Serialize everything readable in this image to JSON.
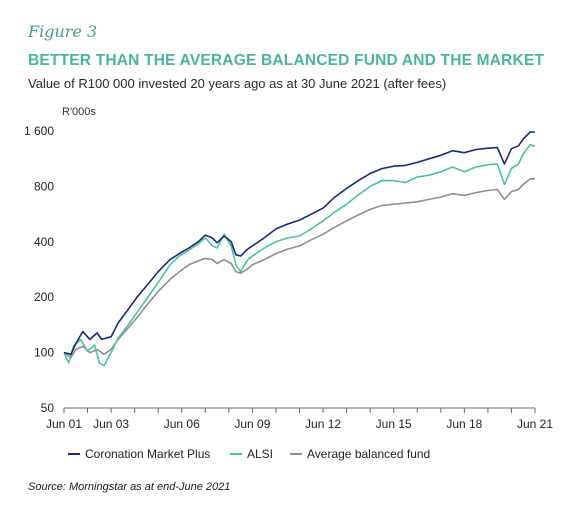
{
  "figure_label": "Figure 3",
  "source": "Source: Morningstar as at end-June 2021",
  "colors": {
    "coronation": "#1b2a78",
    "alsi": "#4fbfa5",
    "balanced": "#8e8e8e",
    "title": "#4bb39e",
    "axis": "#6b6b6b"
  },
  "chart_data": {
    "type": "line",
    "title": "BETTER THAN THE AVERAGE BALANCED FUND AND THE MARKET",
    "subtitle": "Value of R100 000 invested 20 years ago as at 30 June 2021 (after fees)",
    "ylabel": "R'000s",
    "xlabel": "",
    "yscale": "log2",
    "ylim": [
      50,
      1600
    ],
    "yticks": [
      50,
      100,
      200,
      400,
      800,
      1600
    ],
    "ytick_labels": [
      "50",
      "100",
      "200",
      "400",
      "800",
      "1 600"
    ],
    "xlim": [
      2001.5,
      2021.5
    ],
    "xticks": [
      2001.5,
      2002.5,
      2003.5,
      2004.5,
      2005.5,
      2006.5,
      2007.5,
      2008.5,
      2009.5,
      2010.5,
      2011.5,
      2012.5,
      2013.5,
      2014.5,
      2015.5,
      2016.5,
      2017.5,
      2018.5,
      2019.5,
      2020.5,
      2021.5
    ],
    "xtick_labels": [
      {
        "x": 2001.5,
        "label": "Jun 01"
      },
      {
        "x": 2003.5,
        "label": "Jun 03"
      },
      {
        "x": 2006.5,
        "label": "Jun 06"
      },
      {
        "x": 2009.5,
        "label": "Jun 09"
      },
      {
        "x": 2012.5,
        "label": "Jun 12"
      },
      {
        "x": 2015.5,
        "label": "Jun 15"
      },
      {
        "x": 2018.5,
        "label": "Jun 18"
      },
      {
        "x": 2021.5,
        "label": "Jun 21"
      }
    ],
    "legend_position": "bottom",
    "grid": false,
    "series": [
      {
        "name": "Coronation Market Plus",
        "key": "coronation",
        "points": [
          [
            2001.5,
            100
          ],
          [
            2001.8,
            98
          ],
          [
            2002.0,
            112
          ],
          [
            2002.3,
            130
          ],
          [
            2002.6,
            118
          ],
          [
            2002.9,
            128
          ],
          [
            2003.1,
            118
          ],
          [
            2003.5,
            122
          ],
          [
            2003.8,
            145
          ],
          [
            2004.2,
            170
          ],
          [
            2004.6,
            200
          ],
          [
            2005.0,
            230
          ],
          [
            2005.5,
            275
          ],
          [
            2006.0,
            320
          ],
          [
            2006.4,
            345
          ],
          [
            2006.8,
            370
          ],
          [
            2007.2,
            400
          ],
          [
            2007.5,
            435
          ],
          [
            2007.8,
            420
          ],
          [
            2008.0,
            395
          ],
          [
            2008.3,
            430
          ],
          [
            2008.6,
            400
          ],
          [
            2008.8,
            340
          ],
          [
            2009.0,
            335
          ],
          [
            2009.3,
            365
          ],
          [
            2009.5,
            380
          ],
          [
            2010.0,
            420
          ],
          [
            2010.5,
            470
          ],
          [
            2011.0,
            500
          ],
          [
            2011.5,
            525
          ],
          [
            2012.0,
            565
          ],
          [
            2012.5,
            610
          ],
          [
            2013.0,
            700
          ],
          [
            2013.5,
            780
          ],
          [
            2014.0,
            860
          ],
          [
            2014.5,
            940
          ],
          [
            2015.0,
            1000
          ],
          [
            2015.5,
            1030
          ],
          [
            2016.0,
            1040
          ],
          [
            2016.5,
            1080
          ],
          [
            2017.0,
            1130
          ],
          [
            2017.5,
            1180
          ],
          [
            2018.0,
            1250
          ],
          [
            2018.5,
            1220
          ],
          [
            2019.0,
            1270
          ],
          [
            2019.5,
            1290
          ],
          [
            2019.9,
            1300
          ],
          [
            2020.2,
            1060
          ],
          [
            2020.5,
            1280
          ],
          [
            2020.8,
            1330
          ],
          [
            2021.0,
            1450
          ],
          [
            2021.3,
            1580
          ],
          [
            2021.5,
            1580
          ]
        ]
      },
      {
        "name": "ALSI",
        "key": "alsi",
        "points": [
          [
            2001.5,
            100
          ],
          [
            2001.7,
            88
          ],
          [
            2001.9,
            108
          ],
          [
            2002.2,
            118
          ],
          [
            2002.5,
            102
          ],
          [
            2002.8,
            110
          ],
          [
            2003.0,
            88
          ],
          [
            2003.2,
            85
          ],
          [
            2003.5,
            100
          ],
          [
            2003.8,
            120
          ],
          [
            2004.2,
            140
          ],
          [
            2004.6,
            165
          ],
          [
            2005.0,
            195
          ],
          [
            2005.5,
            240
          ],
          [
            2006.0,
            300
          ],
          [
            2006.4,
            335
          ],
          [
            2006.8,
            360
          ],
          [
            2007.2,
            390
          ],
          [
            2007.5,
            420
          ],
          [
            2007.8,
            380
          ],
          [
            2008.0,
            370
          ],
          [
            2008.3,
            440
          ],
          [
            2008.6,
            380
          ],
          [
            2008.8,
            300
          ],
          [
            2009.0,
            275
          ],
          [
            2009.3,
            320
          ],
          [
            2009.5,
            335
          ],
          [
            2010.0,
            370
          ],
          [
            2010.5,
            400
          ],
          [
            2011.0,
            420
          ],
          [
            2011.5,
            430
          ],
          [
            2012.0,
            470
          ],
          [
            2012.5,
            520
          ],
          [
            2013.0,
            580
          ],
          [
            2013.5,
            640
          ],
          [
            2014.0,
            720
          ],
          [
            2014.5,
            800
          ],
          [
            2015.0,
            860
          ],
          [
            2015.5,
            860
          ],
          [
            2016.0,
            840
          ],
          [
            2016.5,
            900
          ],
          [
            2017.0,
            920
          ],
          [
            2017.5,
            960
          ],
          [
            2018.0,
            1020
          ],
          [
            2018.5,
            960
          ],
          [
            2019.0,
            1020
          ],
          [
            2019.5,
            1050
          ],
          [
            2019.9,
            1060
          ],
          [
            2020.2,
            820
          ],
          [
            2020.5,
            1000
          ],
          [
            2020.8,
            1060
          ],
          [
            2021.0,
            1200
          ],
          [
            2021.3,
            1350
          ],
          [
            2021.5,
            1320
          ]
        ]
      },
      {
        "name": "Average balanced fund",
        "key": "balanced",
        "points": [
          [
            2001.5,
            100
          ],
          [
            2001.8,
            94
          ],
          [
            2002.0,
            104
          ],
          [
            2002.3,
            108
          ],
          [
            2002.6,
            100
          ],
          [
            2002.9,
            104
          ],
          [
            2003.2,
            98
          ],
          [
            2003.5,
            104
          ],
          [
            2003.8,
            118
          ],
          [
            2004.2,
            135
          ],
          [
            2004.6,
            155
          ],
          [
            2005.0,
            180
          ],
          [
            2005.5,
            215
          ],
          [
            2006.0,
            250
          ],
          [
            2006.4,
            275
          ],
          [
            2006.8,
            300
          ],
          [
            2007.2,
            315
          ],
          [
            2007.5,
            325
          ],
          [
            2007.8,
            320
          ],
          [
            2008.0,
            305
          ],
          [
            2008.3,
            320
          ],
          [
            2008.6,
            305
          ],
          [
            2008.8,
            275
          ],
          [
            2009.0,
            270
          ],
          [
            2009.3,
            285
          ],
          [
            2009.5,
            300
          ],
          [
            2010.0,
            320
          ],
          [
            2010.5,
            345
          ],
          [
            2011.0,
            365
          ],
          [
            2011.5,
            380
          ],
          [
            2012.0,
            410
          ],
          [
            2012.5,
            440
          ],
          [
            2013.0,
            480
          ],
          [
            2013.5,
            520
          ],
          [
            2014.0,
            560
          ],
          [
            2014.5,
            600
          ],
          [
            2015.0,
            630
          ],
          [
            2015.5,
            640
          ],
          [
            2016.0,
            650
          ],
          [
            2016.5,
            660
          ],
          [
            2017.0,
            680
          ],
          [
            2017.5,
            700
          ],
          [
            2018.0,
            730
          ],
          [
            2018.5,
            715
          ],
          [
            2019.0,
            740
          ],
          [
            2019.5,
            760
          ],
          [
            2019.9,
            770
          ],
          [
            2020.2,
            680
          ],
          [
            2020.5,
            750
          ],
          [
            2020.8,
            770
          ],
          [
            2021.0,
            820
          ],
          [
            2021.3,
            880
          ],
          [
            2021.5,
            880
          ]
        ]
      }
    ]
  }
}
